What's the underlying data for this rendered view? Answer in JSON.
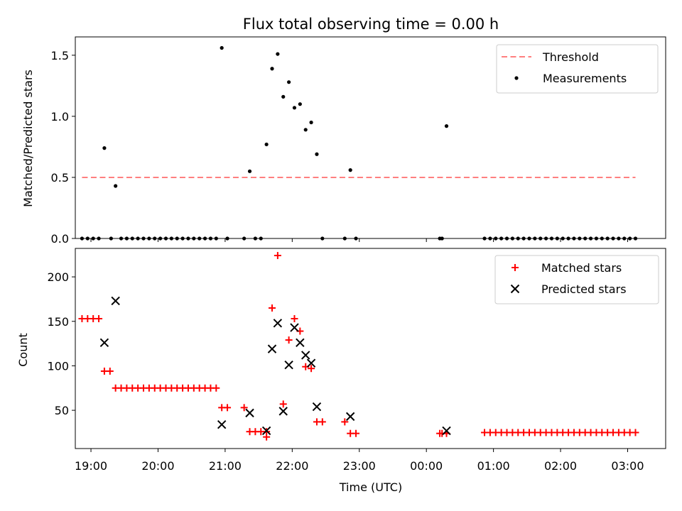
{
  "title": "Flux total observing time = 0.00 h",
  "chart_data": [
    {
      "type": "scatter",
      "ylabel": "Matched/Predicted stars",
      "xlabel": "",
      "ylim": [
        0,
        1.65
      ],
      "xlim": [
        "18:46",
        "03:34"
      ],
      "yticks": [
        0.0,
        0.5,
        1.0,
        1.5
      ],
      "ytick_labels": [
        "0.0",
        "0.5",
        "1.0",
        "1.5"
      ],
      "legend": {
        "position": "top-right",
        "entries": [
          "Threshold",
          "Measurements"
        ]
      },
      "threshold": {
        "name": "Threshold",
        "y": 0.5,
        "x": [
          "18:52",
          "03:07"
        ],
        "color": "#ff7f7f",
        "style": "dashed"
      },
      "series": [
        {
          "name": "Measurements",
          "color": "#000000",
          "points": [
            [
              "18:52",
              0
            ],
            [
              "18:57",
              0
            ],
            [
              "19:02",
              0
            ],
            [
              "19:07",
              0
            ],
            [
              "19:12",
              0.74
            ],
            [
              "19:18",
              0
            ],
            [
              "19:22",
              0.43
            ],
            [
              "19:27",
              0
            ],
            [
              "19:32",
              0
            ],
            [
              "19:37",
              0
            ],
            [
              "19:42",
              0
            ],
            [
              "19:47",
              0
            ],
            [
              "19:52",
              0
            ],
            [
              "19:57",
              0
            ],
            [
              "20:02",
              0
            ],
            [
              "20:07",
              0
            ],
            [
              "20:12",
              0
            ],
            [
              "20:17",
              0
            ],
            [
              "20:22",
              0
            ],
            [
              "20:27",
              0
            ],
            [
              "20:32",
              0
            ],
            [
              "20:37",
              0
            ],
            [
              "20:42",
              0
            ],
            [
              "20:47",
              0
            ],
            [
              "20:52",
              0
            ],
            [
              "20:57",
              1.56
            ],
            [
              "21:02",
              0
            ],
            [
              "21:17",
              0
            ],
            [
              "21:22",
              0.55
            ],
            [
              "21:27",
              0
            ],
            [
              "21:32",
              0
            ],
            [
              "21:37",
              0.77
            ],
            [
              "21:42",
              1.39
            ],
            [
              "21:47",
              1.51
            ],
            [
              "21:52",
              1.16
            ],
            [
              "21:57",
              1.28
            ],
            [
              "22:02",
              1.07
            ],
            [
              "22:07",
              1.1
            ],
            [
              "22:12",
              0.89
            ],
            [
              "22:17",
              0.95
            ],
            [
              "22:22",
              0.69
            ],
            [
              "22:27",
              0
            ],
            [
              "22:47",
              0
            ],
            [
              "22:52",
              0.56
            ],
            [
              "22:57",
              0
            ],
            [
              "00:12",
              0
            ],
            [
              "00:14",
              0
            ],
            [
              "00:18",
              0.92
            ],
            [
              "00:52",
              0
            ],
            [
              "00:57",
              0
            ],
            [
              "01:02",
              0
            ],
            [
              "01:07",
              0
            ],
            [
              "01:12",
              0
            ],
            [
              "01:17",
              0
            ],
            [
              "01:22",
              0
            ],
            [
              "01:27",
              0
            ],
            [
              "01:32",
              0
            ],
            [
              "01:37",
              0
            ],
            [
              "01:42",
              0
            ],
            [
              "01:47",
              0
            ],
            [
              "01:52",
              0
            ],
            [
              "01:57",
              0
            ],
            [
              "02:02",
              0
            ],
            [
              "02:07",
              0
            ],
            [
              "02:12",
              0
            ],
            [
              "02:17",
              0
            ],
            [
              "02:22",
              0
            ],
            [
              "02:27",
              0
            ],
            [
              "02:32",
              0
            ],
            [
              "02:37",
              0
            ],
            [
              "02:42",
              0
            ],
            [
              "02:47",
              0
            ],
            [
              "02:52",
              0
            ],
            [
              "02:57",
              0
            ],
            [
              "03:02",
              0
            ],
            [
              "03:07",
              0
            ]
          ]
        }
      ]
    },
    {
      "type": "scatter",
      "ylabel": "Count",
      "xlabel": "Time (UTC)",
      "ylim": [
        7,
        232
      ],
      "xlim": [
        "18:46",
        "03:34"
      ],
      "yticks": [
        50,
        100,
        150,
        200
      ],
      "ytick_labels": [
        "50",
        "100",
        "150",
        "200"
      ],
      "xticks": [
        "19:00",
        "20:00",
        "21:00",
        "22:00",
        "23:00",
        "00:00",
        "01:00",
        "02:00",
        "03:00"
      ],
      "xtick_labels": [
        "19:00",
        "20:00",
        "21:00",
        "22:00",
        "23:00",
        "00:00",
        "01:00",
        "02:00",
        "03:00"
      ],
      "legend": {
        "position": "top-right",
        "entries": [
          "Matched stars",
          "Predicted stars"
        ]
      },
      "series": [
        {
          "name": "Matched stars",
          "marker": "plus",
          "color": "#ff0000",
          "points": [
            [
              "18:52",
              153
            ],
            [
              "18:57",
              153
            ],
            [
              "19:02",
              153
            ],
            [
              "19:07",
              153
            ],
            [
              "19:12",
              94
            ],
            [
              "19:17",
              94
            ],
            [
              "19:22",
              75
            ],
            [
              "19:27",
              75
            ],
            [
              "19:32",
              75
            ],
            [
              "19:37",
              75
            ],
            [
              "19:42",
              75
            ],
            [
              "19:47",
              75
            ],
            [
              "19:52",
              75
            ],
            [
              "19:57",
              75
            ],
            [
              "20:02",
              75
            ],
            [
              "20:07",
              75
            ],
            [
              "20:12",
              75
            ],
            [
              "20:17",
              75
            ],
            [
              "20:22",
              75
            ],
            [
              "20:27",
              75
            ],
            [
              "20:32",
              75
            ],
            [
              "20:37",
              75
            ],
            [
              "20:42",
              75
            ],
            [
              "20:47",
              75
            ],
            [
              "20:52",
              75
            ],
            [
              "20:57",
              53
            ],
            [
              "21:02",
              53
            ],
            [
              "21:17",
              53
            ],
            [
              "21:22",
              26
            ],
            [
              "21:27",
              26
            ],
            [
              "21:32",
              26
            ],
            [
              "21:37",
              26
            ],
            [
              "21:37",
              20
            ],
            [
              "21:42",
              165
            ],
            [
              "21:47",
              224
            ],
            [
              "21:52",
              57
            ],
            [
              "21:57",
              129
            ],
            [
              "22:02",
              153
            ],
            [
              "22:07",
              139
            ],
            [
              "22:12",
              99
            ],
            [
              "22:17",
              97
            ],
            [
              "22:22",
              37
            ],
            [
              "22:27",
              37
            ],
            [
              "22:47",
              37
            ],
            [
              "22:52",
              24
            ],
            [
              "22:57",
              24
            ],
            [
              "00:12",
              24
            ],
            [
              "00:14",
              24
            ],
            [
              "00:18",
              24
            ],
            [
              "00:52",
              25
            ],
            [
              "00:57",
              25
            ],
            [
              "01:02",
              25
            ],
            [
              "01:07",
              25
            ],
            [
              "01:12",
              25
            ],
            [
              "01:17",
              25
            ],
            [
              "01:22",
              25
            ],
            [
              "01:27",
              25
            ],
            [
              "01:32",
              25
            ],
            [
              "01:37",
              25
            ],
            [
              "01:42",
              25
            ],
            [
              "01:47",
              25
            ],
            [
              "01:52",
              25
            ],
            [
              "01:57",
              25
            ],
            [
              "02:02",
              25
            ],
            [
              "02:07",
              25
            ],
            [
              "02:12",
              25
            ],
            [
              "02:17",
              25
            ],
            [
              "02:22",
              25
            ],
            [
              "02:27",
              25
            ],
            [
              "02:32",
              25
            ],
            [
              "02:37",
              25
            ],
            [
              "02:42",
              25
            ],
            [
              "02:47",
              25
            ],
            [
              "02:52",
              25
            ],
            [
              "02:57",
              25
            ],
            [
              "03:02",
              25
            ],
            [
              "03:07",
              25
            ]
          ]
        },
        {
          "name": "Predicted stars",
          "marker": "x",
          "color": "#000000",
          "points": [
            [
              "19:12",
              126
            ],
            [
              "19:22",
              173
            ],
            [
              "20:57",
              34
            ],
            [
              "21:22",
              47
            ],
            [
              "21:37",
              27
            ],
            [
              "21:42",
              119
            ],
            [
              "21:47",
              148
            ],
            [
              "21:52",
              49
            ],
            [
              "21:57",
              101
            ],
            [
              "22:02",
              143
            ],
            [
              "22:07",
              126
            ],
            [
              "22:12",
              112
            ],
            [
              "22:17",
              103
            ],
            [
              "22:22",
              54
            ],
            [
              "22:52",
              43
            ],
            [
              "00:18",
              27
            ]
          ]
        }
      ]
    }
  ]
}
